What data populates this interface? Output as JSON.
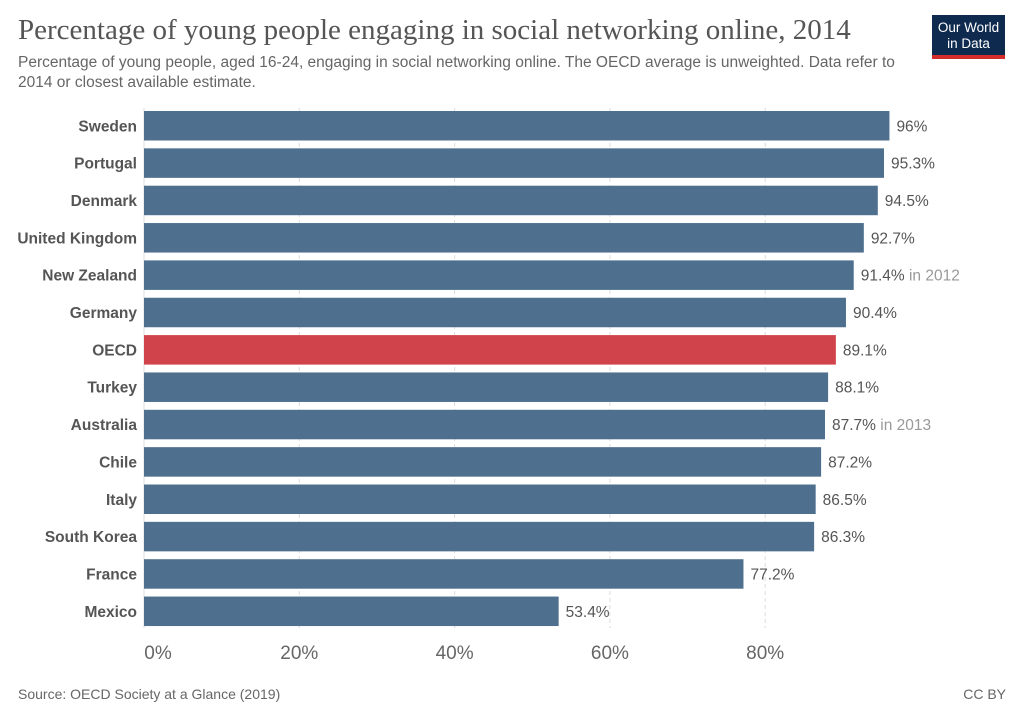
{
  "header": {
    "title": "Percentage of young people engaging in social networking online, 2014",
    "subtitle": "Percentage of young people, aged 16-24, engaging in social networking online. The OECD average is unweighted. Data refer to 2014 or closest available estimate.",
    "logo_line1": "Our World",
    "logo_line2": "in Data"
  },
  "footer": {
    "source": "Source: OECD Society at a Glance (2019)",
    "license": "CC BY"
  },
  "colors": {
    "bar": "#4e6f8e",
    "highlight": "#d1434b",
    "grid": "#dddddd"
  },
  "chart_data": {
    "type": "bar",
    "orientation": "horizontal",
    "title": "Percentage of young people engaging in social networking online, 2014",
    "xlim": [
      0,
      100
    ],
    "ticks": [
      0,
      20,
      40,
      60,
      80
    ],
    "tick_labels": [
      "0%",
      "20%",
      "40%",
      "60%",
      "80%"
    ],
    "grid": true,
    "categories": [
      "Sweden",
      "Portugal",
      "Denmark",
      "United Kingdom",
      "New Zealand",
      "Germany",
      "OECD",
      "Turkey",
      "Australia",
      "Chile",
      "Italy",
      "South Korea",
      "France",
      "Mexico"
    ],
    "values": [
      96,
      95.3,
      94.5,
      92.7,
      91.4,
      90.4,
      89.1,
      88.1,
      87.7,
      87.2,
      86.5,
      86.3,
      77.2,
      53.4
    ],
    "value_labels": [
      "96%",
      "95.3%",
      "94.5%",
      "92.7%",
      "91.4%",
      "90.4%",
      "89.1%",
      "88.1%",
      "87.7%",
      "87.2%",
      "86.5%",
      "86.3%",
      "77.2%",
      "53.4%"
    ],
    "notes": [
      "",
      "",
      "",
      "",
      "in 2012",
      "",
      "",
      "",
      "in 2013",
      "",
      "",
      "",
      "",
      ""
    ],
    "highlight": "OECD"
  }
}
